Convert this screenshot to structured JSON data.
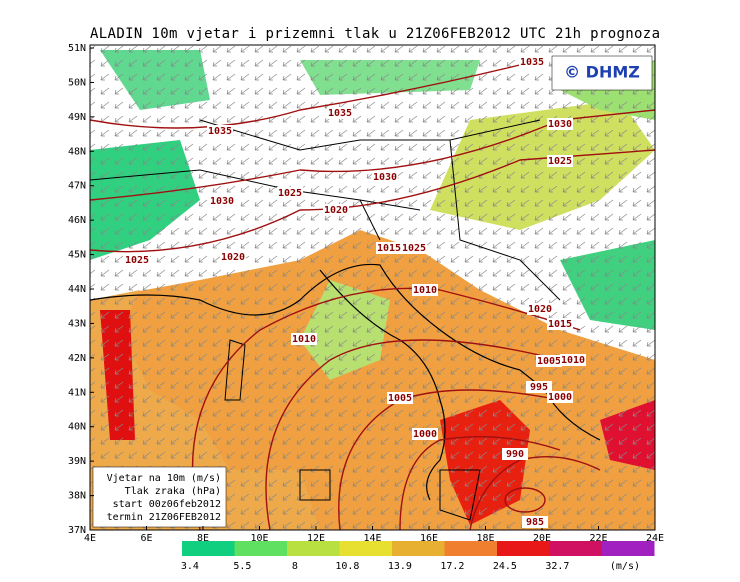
{
  "header": {
    "title": "ALADIN 10m vjetar i prizemni tlak u 21Z06FEB2012 UTC 21h prognoza"
  },
  "logo": "© DHMZ",
  "map": {
    "lat_labels": [
      "51N",
      "50N",
      "49N",
      "48N",
      "47N",
      "46N",
      "45N",
      "44N",
      "43N",
      "42N",
      "41N",
      "40N",
      "39N",
      "38N",
      "37N"
    ],
    "lon_labels": [
      "4E",
      "6E",
      "8E",
      "10E",
      "12E",
      "14E",
      "16E",
      "18E",
      "20E",
      "22E",
      "24E"
    ],
    "isobar_labels": [
      "1035",
      "1035",
      "1035",
      "1030",
      "1030",
      "1025",
      "1025",
      "1030",
      "1020",
      "1025",
      "1015",
      "1025",
      "1020",
      "1010",
      "1020",
      "1015",
      "1010",
      "1005",
      "1010",
      "995",
      "1000",
      "1005",
      "1000",
      "990",
      "985"
    ]
  },
  "legend": {
    "lines": [
      "Vjetar na 10m (m/s)",
      "Tlak zraka (hPa)",
      "start 00z06feb2012",
      "termin 21Z06FEB2012"
    ]
  },
  "colorbar": {
    "values": [
      3.4,
      5.5,
      8,
      10.8,
      13.9,
      17.2,
      24.5,
      32.7
    ],
    "unit": "(m/s)"
  }
}
